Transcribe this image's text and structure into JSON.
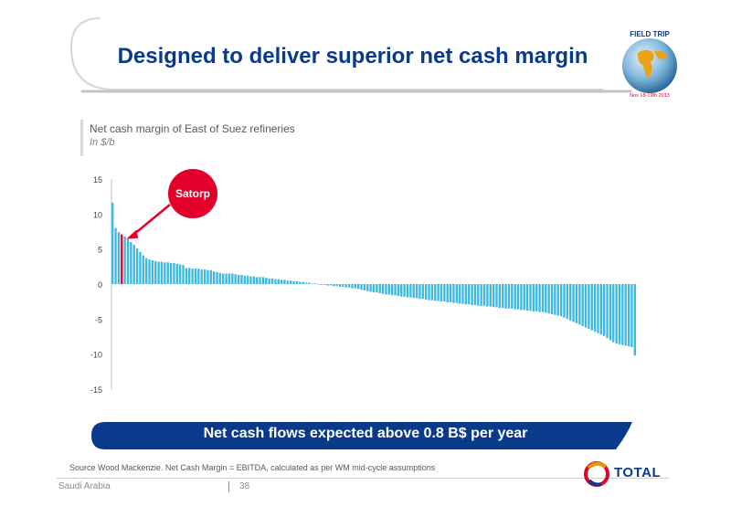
{
  "slide": {
    "title": "Designed to deliver superior net cash margin",
    "badge_title": "FIELD TRIP",
    "badge_date": "Nov 18-19th 2013"
  },
  "chart_data": {
    "type": "bar",
    "title": "Net cash margin of East of Suez refineries",
    "subtitle": "In $/b",
    "ylim": [
      -15,
      15
    ],
    "yticks": [
      15,
      10,
      5,
      0,
      -5,
      -10,
      -15
    ],
    "highlight_label": "Satorp",
    "highlight_index": 3,
    "colors": {
      "bars": "#3bb8e3",
      "highlight": "#e3002b",
      "callout": "#e3002b"
    },
    "values": [
      11.6,
      8.0,
      7.4,
      7.1,
      6.8,
      6.4,
      6.0,
      5.6,
      5.1,
      4.6,
      4.1,
      3.7,
      3.5,
      3.4,
      3.3,
      3.2,
      3.2,
      3.1,
      3.1,
      3.0,
      3.0,
      2.9,
      2.8,
      2.7,
      2.3,
      2.3,
      2.2,
      2.2,
      2.2,
      2.1,
      2.1,
      2.0,
      2.0,
      1.8,
      1.7,
      1.6,
      1.5,
      1.5,
      1.5,
      1.5,
      1.4,
      1.3,
      1.3,
      1.2,
      1.2,
      1.1,
      1.1,
      1.0,
      1.0,
      1.0,
      0.9,
      0.8,
      0.8,
      0.7,
      0.7,
      0.6,
      0.6,
      0.5,
      0.5,
      0.4,
      0.4,
      0.3,
      0.3,
      0.2,
      0.2,
      0.1,
      0.1,
      0.0,
      -0.1,
      -0.1,
      -0.2,
      -0.2,
      -0.3,
      -0.3,
      -0.4,
      -0.4,
      -0.5,
      -0.5,
      -0.6,
      -0.6,
      -0.7,
      -0.8,
      -0.9,
      -1.0,
      -1.1,
      -1.2,
      -1.2,
      -1.3,
      -1.4,
      -1.5,
      -1.5,
      -1.6,
      -1.6,
      -1.7,
      -1.8,
      -1.8,
      -1.9,
      -1.9,
      -2.0,
      -2.0,
      -2.1,
      -2.1,
      -2.2,
      -2.3,
      -2.3,
      -2.4,
      -2.4,
      -2.5,
      -2.5,
      -2.6,
      -2.6,
      -2.7,
      -2.7,
      -2.8,
      -2.8,
      -2.9,
      -2.9,
      -3.0,
      -3.0,
      -3.1,
      -3.1,
      -3.1,
      -3.2,
      -3.2,
      -3.3,
      -3.3,
      -3.4,
      -3.4,
      -3.5,
      -3.5,
      -3.5,
      -3.6,
      -3.6,
      -3.7,
      -3.7,
      -3.8,
      -3.8,
      -3.9,
      -3.9,
      -4.0,
      -4.0,
      -4.1,
      -4.2,
      -4.3,
      -4.4,
      -4.5,
      -4.6,
      -4.8,
      -5.0,
      -5.2,
      -5.4,
      -5.6,
      -5.8,
      -6.0,
      -6.2,
      -6.4,
      -6.6,
      -6.8,
      -7.0,
      -7.2,
      -7.4,
      -7.7,
      -8.0,
      -8.3,
      -8.5,
      -8.6,
      -8.7,
      -8.8,
      -8.9,
      -9.0,
      -10.2
    ]
  },
  "banner": {
    "text": "Net cash flows expected above 0.8 B$ per year"
  },
  "footer": {
    "source": "Source Wood Mackenzie. Net Cash Margin = EBITDA, calculated as per WM mid-cycle assumptions",
    "region": "Saudi Arabia",
    "page": "38",
    "logo_text": "TOTAL"
  }
}
